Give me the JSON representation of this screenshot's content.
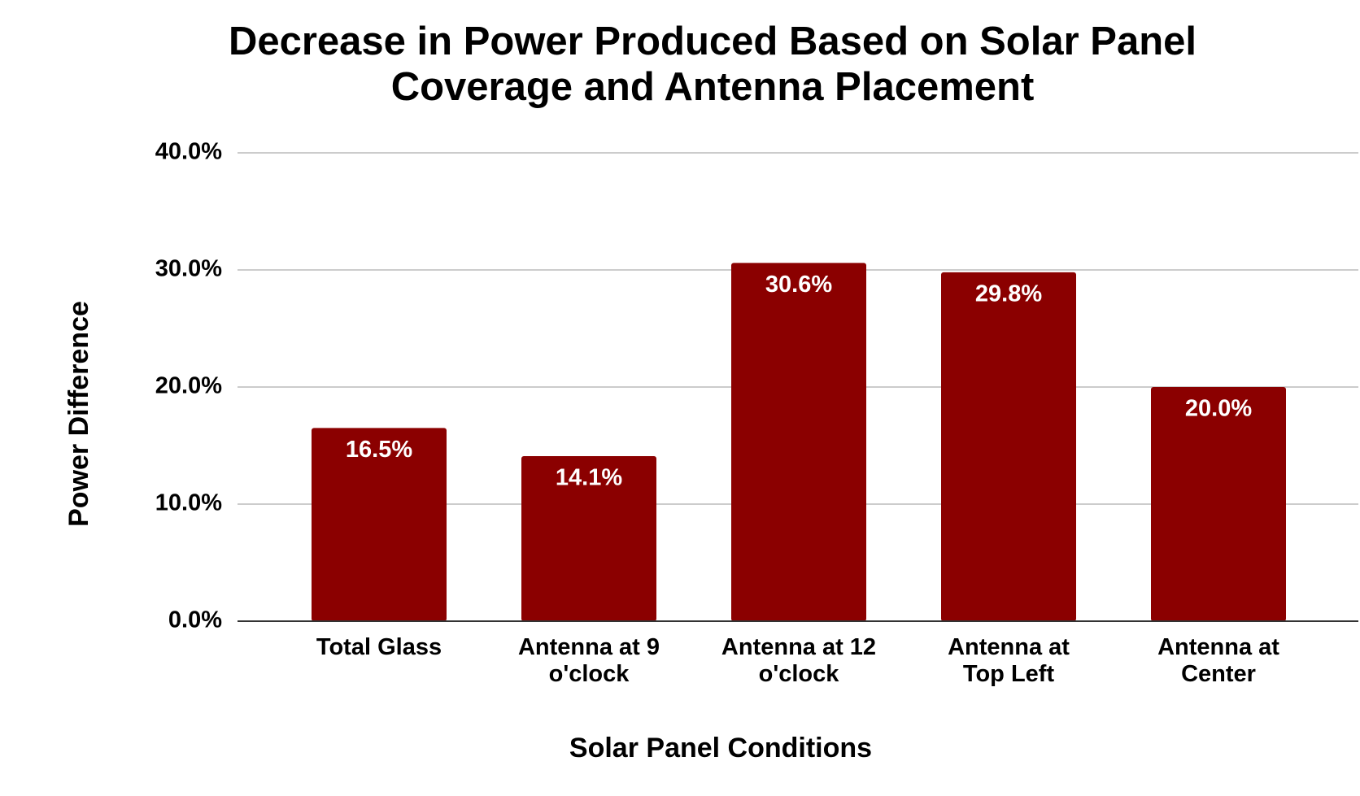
{
  "chart_data": {
    "type": "bar",
    "title": "Decrease in Power Produced Based on Solar Panel Coverage and Antenna Placement",
    "x_label": "Solar Panel Conditions",
    "y_label": "Power Difference",
    "categories": [
      "Total Glass",
      "Antenna at 9 o'clock",
      "Antenna at 12 o'clock",
      "Antenna at Top Left",
      "Antenna at Center"
    ],
    "values": [
      16.5,
      14.1,
      30.6,
      29.8,
      20.0
    ],
    "value_labels": [
      "16.5%",
      "14.1%",
      "30.6%",
      "29.8%",
      "20.0%"
    ],
    "color": "#8b0000",
    "ylim": [
      0,
      40
    ],
    "yticks": [
      {
        "value": 0,
        "label": "0.0%"
      },
      {
        "value": 10,
        "label": "10.0%"
      },
      {
        "value": 20,
        "label": "20.0%"
      },
      {
        "value": 30,
        "label": "30.0%"
      },
      {
        "value": 40,
        "label": "40.0%"
      }
    ],
    "grid": true
  }
}
